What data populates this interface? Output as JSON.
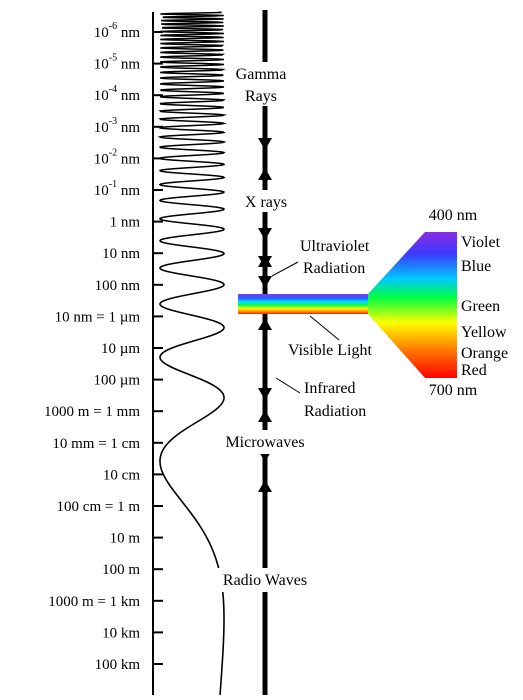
{
  "scale_labels": [
    {
      "base": "10",
      "exp": "-6",
      "unit": "nm"
    },
    {
      "base": "10",
      "exp": "-5",
      "unit": "nm"
    },
    {
      "base": "10",
      "exp": "-4",
      "unit": "nm"
    },
    {
      "base": "10",
      "exp": "-3",
      "unit": "nm"
    },
    {
      "base": "10",
      "exp": "-2",
      "unit": "nm"
    },
    {
      "base": "10",
      "exp": "-1",
      "unit": "nm"
    },
    {
      "base": "",
      "exp": "",
      "unit": "1 nm"
    },
    {
      "base": "",
      "exp": "",
      "unit": "10 nm"
    },
    {
      "base": "",
      "exp": "",
      "unit": "100 nm"
    },
    {
      "base": "",
      "exp": "",
      "unit": "10   nm = 1 µm"
    },
    {
      "base": "",
      "exp": "",
      "unit": "10 µm"
    },
    {
      "base": "",
      "exp": "",
      "unit": "100 µm"
    },
    {
      "base": "",
      "exp": "",
      "unit": "1000   m = 1 mm"
    },
    {
      "base": "",
      "exp": "",
      "unit": "10 mm = 1 cm"
    },
    {
      "base": "",
      "exp": "",
      "unit": "10 cm"
    },
    {
      "base": "",
      "exp": "",
      "unit": "100 cm = 1 m"
    },
    {
      "base": "",
      "exp": "",
      "unit": "10 m"
    },
    {
      "base": "",
      "exp": "",
      "unit": "100 m"
    },
    {
      "base": "",
      "exp": "",
      "unit": "1000 m = 1 km"
    },
    {
      "base": "",
      "exp": "",
      "unit": "10 km"
    },
    {
      "base": "",
      "exp": "",
      "unit": "100 km"
    }
  ],
  "bands": {
    "gamma_line1": "Gamma",
    "gamma_line2": "Rays",
    "xrays": "X rays",
    "uv_line1": "Ultraviolet",
    "uv_line2": "Radiation",
    "visible": "Visible Light",
    "ir_line1": "Infrared",
    "ir_line2": "Radiation",
    "microwaves": "Microwaves",
    "radio": "Radio Waves"
  },
  "spectrum": {
    "top_label": "400 nm",
    "bottom_label": "700 nm",
    "colors": [
      "Violet",
      "Blue",
      "Green",
      "Yellow",
      "Orange",
      "Red"
    ]
  }
}
